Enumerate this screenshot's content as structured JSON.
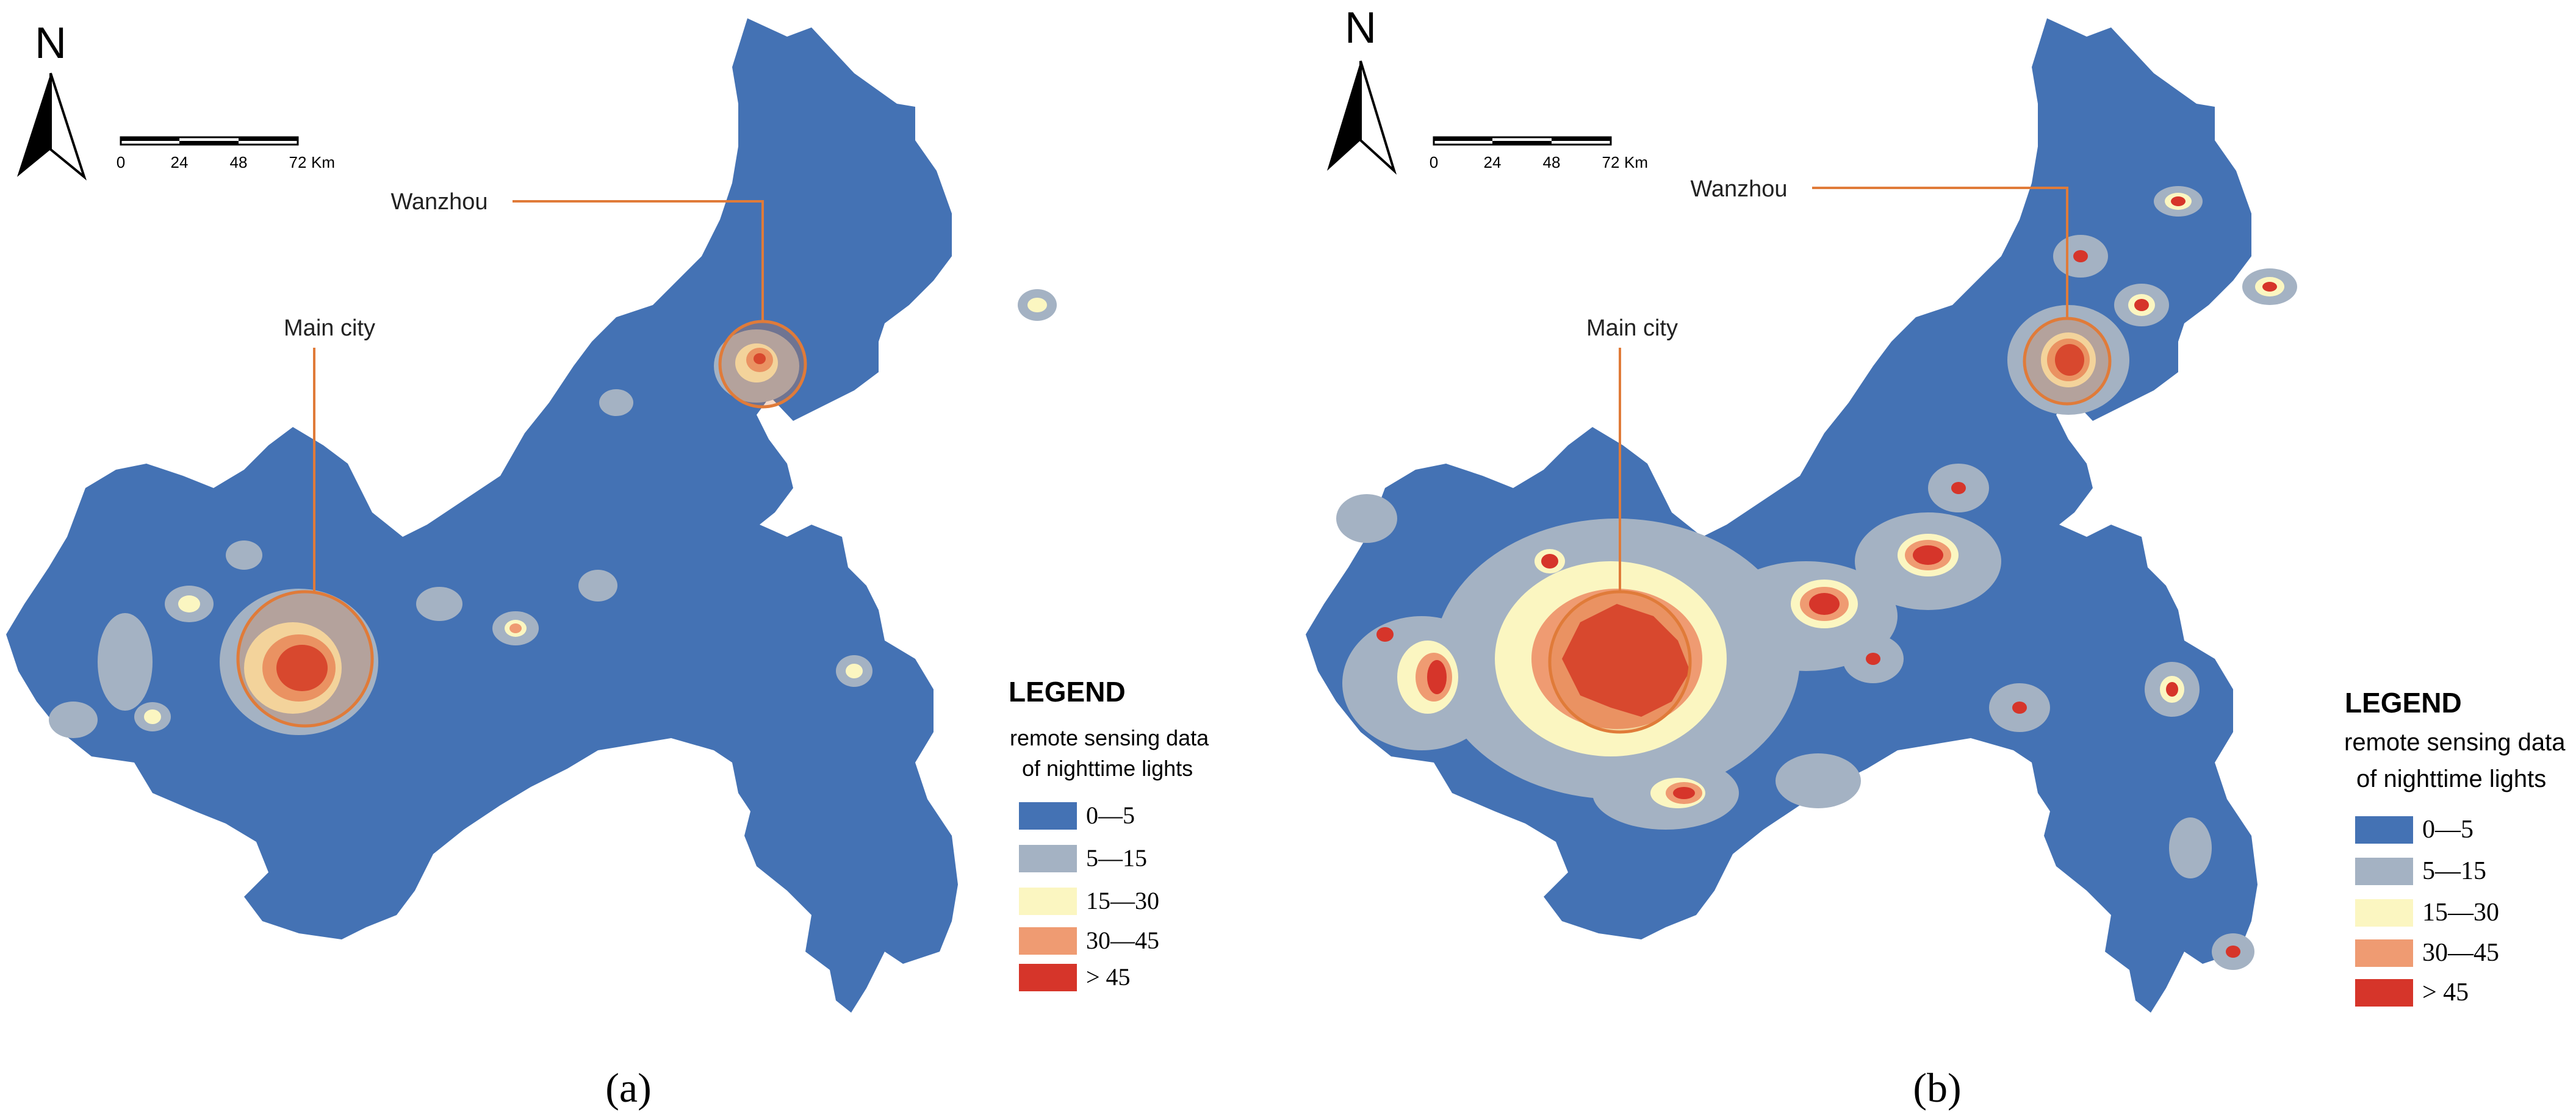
{
  "colors": {
    "class_0_5": "#4472b4",
    "class_5_15": "#a4b2c3",
    "class_15_30": "#fbf6c1",
    "class_30_45": "#ef9b72",
    "class_gt45": "#d6352a",
    "callout": "#e07b39"
  },
  "panels": [
    {
      "id": "a",
      "caption": "(a)",
      "north_label": "N",
      "scale_bar": {
        "ticks": [
          "0",
          "24",
          "48",
          "72"
        ],
        "unit": "Km"
      },
      "callouts": [
        {
          "label": "Main city"
        },
        {
          "label": "Wanzhou"
        }
      ],
      "legend": {
        "title": "LEGEND",
        "subtitle_line1": "remote sensing data",
        "subtitle_line2": "of nighttime lights",
        "items": [
          "0—5",
          "5—15",
          "15—30",
          "30—45",
          "> 45"
        ]
      }
    },
    {
      "id": "b",
      "caption": "(b)",
      "north_label": "N",
      "scale_bar": {
        "ticks": [
          "0",
          "24",
          "48",
          "72"
        ],
        "unit": "Km"
      },
      "callouts": [
        {
          "label": "Main city"
        },
        {
          "label": "Wanzhou"
        }
      ],
      "legend": {
        "title": "LEGEND",
        "subtitle_line1": "remote sensing data",
        "subtitle_line2": "of nighttime lights",
        "items": [
          "0—5",
          "5—15",
          "15—30",
          "30—45",
          "> 45"
        ]
      }
    }
  ]
}
